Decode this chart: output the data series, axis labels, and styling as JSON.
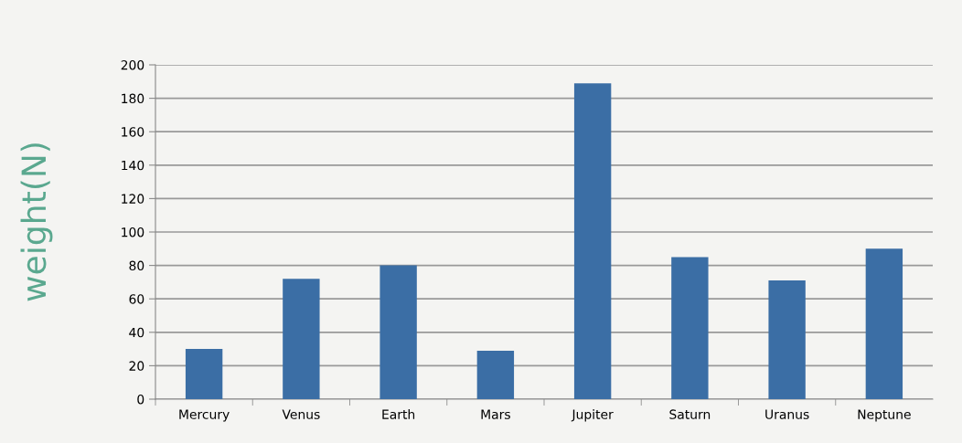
{
  "chart_data": {
    "type": "bar",
    "ylabel": "weight(N)",
    "categories": [
      "Mercury",
      "Venus",
      "Earth",
      "Mars",
      "Jupiter",
      "Saturn",
      "Uranus",
      "Neptune"
    ],
    "values": [
      30,
      72,
      80,
      29,
      189,
      85,
      71,
      90
    ],
    "color": "#3b6ea5",
    "ylim": [
      0,
      200
    ],
    "yticks": [
      0,
      20,
      40,
      60,
      80,
      100,
      120,
      140,
      160,
      180,
      200
    ],
    "grid": "y"
  }
}
